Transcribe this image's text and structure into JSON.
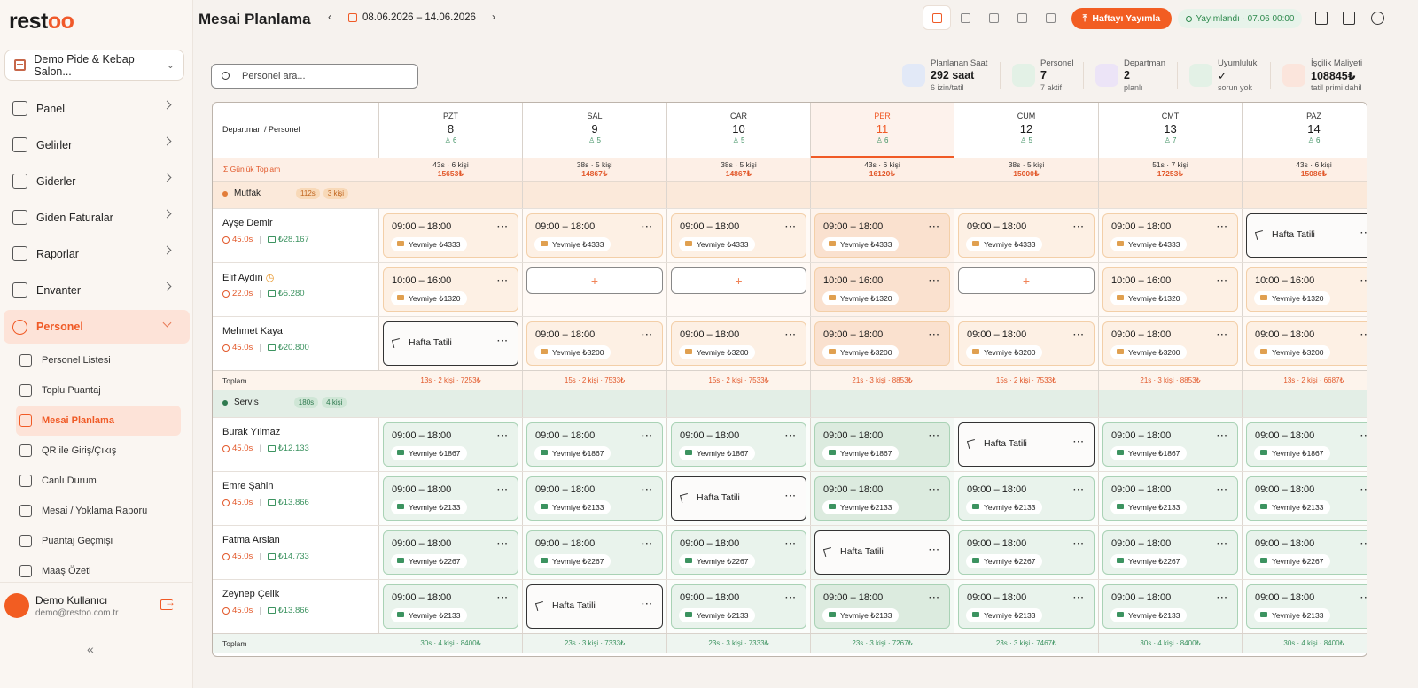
{
  "sidebar": {
    "logo": {
      "text": "rest",
      "accent": "oo"
    },
    "company": "Demo Pide & Kebap Salon...",
    "nav": [
      {
        "label": "Panel",
        "icon": "panel-icon"
      },
      {
        "label": "Gelirler",
        "icon": "wallet-icon"
      },
      {
        "label": "Giderler",
        "icon": "card-icon"
      },
      {
        "label": "Giden Faturalar",
        "icon": "invoice-icon"
      },
      {
        "label": "Raporlar",
        "icon": "bar-chart-icon"
      },
      {
        "label": "Envanter",
        "icon": "box-icon"
      },
      {
        "label": "Personel",
        "icon": "users-icon"
      }
    ],
    "sub": [
      {
        "label": "Personel Listesi",
        "icon": "id-card-icon"
      },
      {
        "label": "Toplu Puantaj",
        "icon": "clipboard-check-icon"
      },
      {
        "label": "Mesai Planlama",
        "icon": "calendar-grid-icon"
      },
      {
        "label": "QR ile Giriş/Çıkış",
        "icon": "qr-code-icon"
      },
      {
        "label": "Canlı Durum",
        "icon": "activity-icon"
      },
      {
        "label": "Mesai / Yoklama Raporu",
        "icon": "report-icon"
      },
      {
        "label": "Puantaj Geçmişi",
        "icon": "clock-icon"
      },
      {
        "label": "Maaş Özeti",
        "icon": "briefcase-icon"
      }
    ],
    "user": {
      "name": "Demo Kullanıcı",
      "email": "demo@restoo.com.tr"
    },
    "collapse": "«"
  },
  "header": {
    "title": "Mesai Planlama",
    "prev": "‹",
    "next": "›",
    "date_range": "08.06.2026 – 14.06.2026",
    "publish_label": "Haftayı Yayımla",
    "published_label": "Yayımlandı · 07.06 00:00"
  },
  "search": {
    "placeholder": "Personel ara..."
  },
  "stats": [
    {
      "title": "Planlanan Saat",
      "value": "292 saat",
      "sub": "6 izin/tatil",
      "color": "#e2e9f7",
      "icon": "clock-icon"
    },
    {
      "title": "Personel",
      "value": "7",
      "sub": "7 aktif",
      "color": "#e3f1e6",
      "icon": "users-icon"
    },
    {
      "title": "Departman",
      "value": "2",
      "sub": "planlı",
      "color": "#ece4f7",
      "icon": "building-icon"
    },
    {
      "title": "Uyumluluk",
      "value": "✓",
      "sub": "sorun yok",
      "color": "#e3f1e6",
      "icon": "check-circle-icon"
    },
    {
      "title": "İşçilik Maliyeti",
      "value": "108845₺",
      "sub": "tatil primi dahil",
      "color": "#fbe5dc",
      "icon": "wallet-icon"
    }
  ],
  "grid": {
    "col_header": "Departman / Personel",
    "daily_total_label": "Σ  Günlük Toplam",
    "days": [
      {
        "name": "PZT",
        "date": "8",
        "count": "6",
        "today": false
      },
      {
        "name": "SAL",
        "date": "9",
        "count": "5",
        "today": false
      },
      {
        "name": "CAR",
        "date": "10",
        "count": "5",
        "today": false
      },
      {
        "name": "PER",
        "date": "11",
        "count": "6",
        "today": true
      },
      {
        "name": "CUM",
        "date": "12",
        "count": "5",
        "today": false
      },
      {
        "name": "CMT",
        "date": "13",
        "count": "7",
        "today": false
      },
      {
        "name": "PAZ",
        "date": "14",
        "count": "6",
        "today": false
      }
    ],
    "daily_totals": [
      {
        "line": "43s · 6 kişi",
        "cost": "15653₺"
      },
      {
        "line": "38s · 5 kişi",
        "cost": "14867₺"
      },
      {
        "line": "38s · 5 kişi",
        "cost": "14867₺"
      },
      {
        "line": "43s · 6 kişi",
        "cost": "16120₺"
      },
      {
        "line": "38s · 5 kişi",
        "cost": "15000₺"
      },
      {
        "line": "51s · 7 kişi",
        "cost": "17253₺"
      },
      {
        "line": "43s · 6 kişi",
        "cost": "15086₺"
      }
    ],
    "departments": [
      {
        "name": "Mutfak",
        "hours": "112s",
        "people": "3 kişi",
        "dot": "#e27d3a",
        "total_label": "Toplam",
        "totals": [
          "13s · 2 kişi · 7253₺",
          "15s · 2 kişi · 7533₺",
          "15s · 2 kişi · 7533₺",
          "21s · 3 kişi · 8853₺",
          "15s · 2 kişi · 7533₺",
          "21s · 3 kişi · 8853₺",
          "13s · 2 kişi · 6687₺"
        ],
        "staff": [
          {
            "name": "Ayşe Demir",
            "hours": "45.0s",
            "pay": "₺28.167",
            "warn": false,
            "shifts": [
              {
                "type": "shift",
                "time": "09:00 – 18:00",
                "wage": "Yevmiye ₺4333"
              },
              {
                "type": "shift",
                "time": "09:00 – 18:00",
                "wage": "Yevmiye ₺4333"
              },
              {
                "type": "shift",
                "time": "09:00 – 18:00",
                "wage": "Yevmiye ₺4333"
              },
              {
                "type": "shift",
                "time": "09:00 – 18:00",
                "wage": "Yevmiye ₺4333"
              },
              {
                "type": "shift",
                "time": "09:00 – 18:00",
                "wage": "Yevmiye ₺4333"
              },
              {
                "type": "shift",
                "time": "09:00 – 18:00",
                "wage": "Yevmiye ₺4333"
              },
              {
                "type": "off",
                "label": "Hafta Tatili"
              }
            ]
          },
          {
            "name": "Elif Aydın",
            "hours": "22.0s",
            "pay": "₺5.280",
            "warn": true,
            "shifts": [
              {
                "type": "shift",
                "time": "10:00 – 16:00",
                "wage": "Yevmiye ₺1320"
              },
              {
                "type": "add",
                "label": "+"
              },
              {
                "type": "add",
                "label": "+"
              },
              {
                "type": "shift",
                "time": "10:00 – 16:00",
                "wage": "Yevmiye ₺1320"
              },
              {
                "type": "add",
                "label": "+"
              },
              {
                "type": "shift",
                "time": "10:00 – 16:00",
                "wage": "Yevmiye ₺1320"
              },
              {
                "type": "shift",
                "time": "10:00 – 16:00",
                "wage": "Yevmiye ₺1320"
              }
            ]
          },
          {
            "name": "Mehmet Kaya",
            "hours": "45.0s",
            "pay": "₺20.800",
            "warn": false,
            "shifts": [
              {
                "type": "off",
                "label": "Hafta Tatili"
              },
              {
                "type": "shift",
                "time": "09:00 – 18:00",
                "wage": "Yevmiye ₺3200"
              },
              {
                "type": "shift",
                "time": "09:00 – 18:00",
                "wage": "Yevmiye ₺3200"
              },
              {
                "type": "shift",
                "time": "09:00 – 18:00",
                "wage": "Yevmiye ₺3200"
              },
              {
                "type": "shift",
                "time": "09:00 – 18:00",
                "wage": "Yevmiye ₺3200"
              },
              {
                "type": "shift",
                "time": "09:00 – 18:00",
                "wage": "Yevmiye ₺3200"
              },
              {
                "type": "shift",
                "time": "09:00 – 18:00",
                "wage": "Yevmiye ₺3200"
              }
            ]
          }
        ]
      },
      {
        "name": "Servis",
        "hours": "180s",
        "people": "4 kişi",
        "dot": "#2f7a4f",
        "total_label": "Toplam",
        "totals": [
          "30s · 4 kişi · 8400₺",
          "23s · 3 kişi · 7333₺",
          "23s · 3 kişi · 7333₺",
          "23s · 3 kişi · 7267₺",
          "23s · 3 kişi · 7467₺",
          "30s · 4 kişi · 8400₺",
          "30s · 4 kişi · 8400₺"
        ],
        "staff": [
          {
            "name": "Burak Yılmaz",
            "hours": "45.0s",
            "pay": "₺12.133",
            "warn": false,
            "shifts": [
              {
                "type": "shift",
                "time": "09:00 – 18:00",
                "wage": "Yevmiye ₺1867"
              },
              {
                "type": "shift",
                "time": "09:00 – 18:00",
                "wage": "Yevmiye ₺1867"
              },
              {
                "type": "shift",
                "time": "09:00 – 18:00",
                "wage": "Yevmiye ₺1867"
              },
              {
                "type": "shift",
                "time": "09:00 – 18:00",
                "wage": "Yevmiye ₺1867"
              },
              {
                "type": "off",
                "label": "Hafta Tatili"
              },
              {
                "type": "shift",
                "time": "09:00 – 18:00",
                "wage": "Yevmiye ₺1867"
              },
              {
                "type": "shift",
                "time": "09:00 – 18:00",
                "wage": "Yevmiye ₺1867"
              }
            ]
          },
          {
            "name": "Emre Şahin",
            "hours": "45.0s",
            "pay": "₺13.866",
            "warn": false,
            "shifts": [
              {
                "type": "shift",
                "time": "09:00 – 18:00",
                "wage": "Yevmiye ₺2133"
              },
              {
                "type": "shift",
                "time": "09:00 – 18:00",
                "wage": "Yevmiye ₺2133"
              },
              {
                "type": "off",
                "label": "Hafta Tatili"
              },
              {
                "type": "shift",
                "time": "09:00 – 18:00",
                "wage": "Yevmiye ₺2133"
              },
              {
                "type": "shift",
                "time": "09:00 – 18:00",
                "wage": "Yevmiye ₺2133"
              },
              {
                "type": "shift",
                "time": "09:00 – 18:00",
                "wage": "Yevmiye ₺2133"
              },
              {
                "type": "shift",
                "time": "09:00 – 18:00",
                "wage": "Yevmiye ₺2133"
              }
            ]
          },
          {
            "name": "Fatma Arslan",
            "hours": "45.0s",
            "pay": "₺14.733",
            "warn": false,
            "shifts": [
              {
                "type": "shift",
                "time": "09:00 – 18:00",
                "wage": "Yevmiye ₺2267"
              },
              {
                "type": "shift",
                "time": "09:00 – 18:00",
                "wage": "Yevmiye ₺2267"
              },
              {
                "type": "shift",
                "time": "09:00 – 18:00",
                "wage": "Yevmiye ₺2267"
              },
              {
                "type": "off",
                "label": "Hafta Tatili"
              },
              {
                "type": "shift",
                "time": "09:00 – 18:00",
                "wage": "Yevmiye ₺2267"
              },
              {
                "type": "shift",
                "time": "09:00 – 18:00",
                "wage": "Yevmiye ₺2267"
              },
              {
                "type": "shift",
                "time": "09:00 – 18:00",
                "wage": "Yevmiye ₺2267"
              }
            ]
          },
          {
            "name": "Zeynep Çelik",
            "hours": "45.0s",
            "pay": "₺13.866",
            "warn": false,
            "shifts": [
              {
                "type": "shift",
                "time": "09:00 – 18:00",
                "wage": "Yevmiye ₺2133"
              },
              {
                "type": "off",
                "label": "Hafta Tatili"
              },
              {
                "type": "shift",
                "time": "09:00 – 18:00",
                "wage": "Yevmiye ₺2133"
              },
              {
                "type": "shift",
                "time": "09:00 – 18:00",
                "wage": "Yevmiye ₺2133"
              },
              {
                "type": "shift",
                "time": "09:00 – 18:00",
                "wage": "Yevmiye ₺2133"
              },
              {
                "type": "shift",
                "time": "09:00 – 18:00",
                "wage": "Yevmiye ₺2133"
              },
              {
                "type": "shift",
                "time": "09:00 – 18:00",
                "wage": "Yevmiye ₺2133"
              }
            ]
          }
        ]
      }
    ]
  },
  "colors": {
    "accent": "#f25d22",
    "green": "#3c9360",
    "mutfak_bg": "#fdf0e4",
    "mutfak_border": "#f3cfa8",
    "servis_bg": "#e9f3ec",
    "servis_border": "#a9d2b5"
  }
}
